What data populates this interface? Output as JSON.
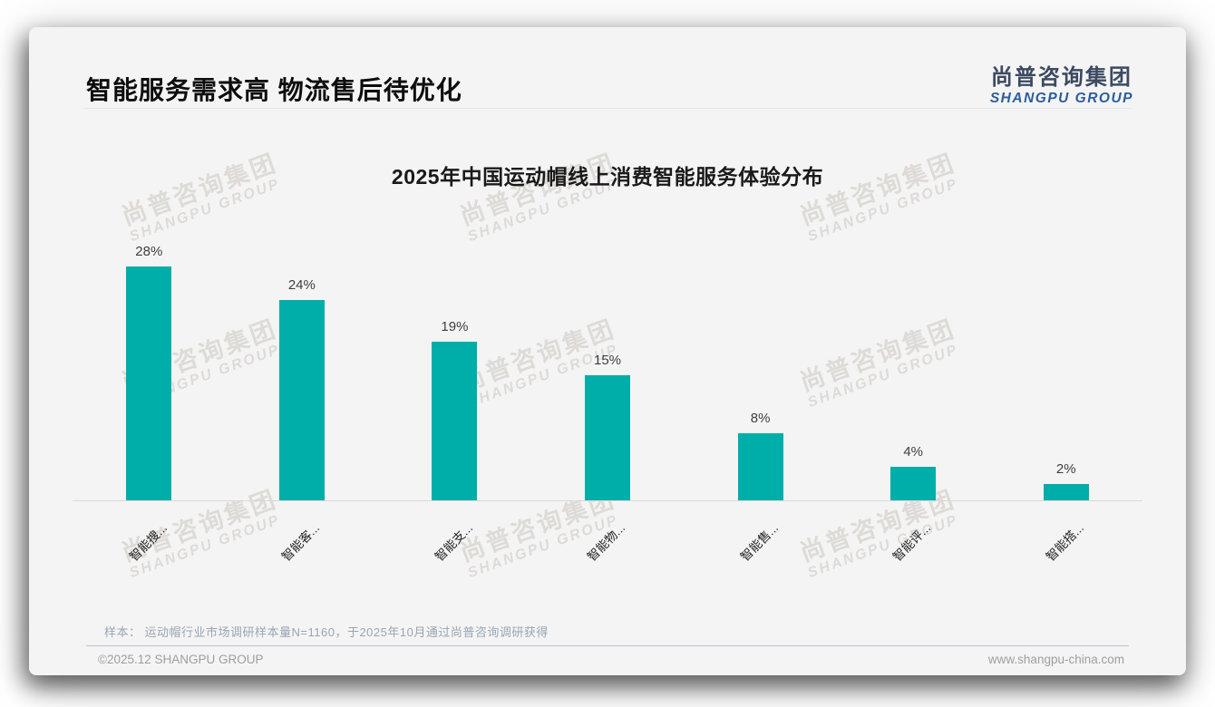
{
  "header": {
    "title": "智能服务需求高 物流售后待优化",
    "logo": {
      "cn": "尚普咨询集团",
      "en": "SHANGPU GROUP"
    }
  },
  "watermark": {
    "line1": "尚普咨询集团",
    "line2": "SHANGPU GROUP"
  },
  "chart_data": {
    "type": "bar",
    "title": "2025年中国运动帽线上消费智能服务体验分布",
    "categories": [
      "智能搜...",
      "智能客...",
      "智能支...",
      "智能物...",
      "智能售...",
      "智能评...",
      "智能搭..."
    ],
    "values": [
      28,
      24,
      19,
      15,
      8,
      4,
      2
    ],
    "unit": "%",
    "bar_color": "#00AEA9",
    "xlabel": "",
    "ylabel": "",
    "ylim": [
      0,
      30
    ],
    "grid": false,
    "legend": "none",
    "value_labels_shown": true
  },
  "footnote": {
    "label": "样本：",
    "text": "运动帽行业市场调研样本量N=1160，于2025年10月通过尚普咨询调研获得"
  },
  "footer": {
    "left": "©2025.12 SHANGPU GROUP",
    "right": "www.shangpu-china.com"
  }
}
